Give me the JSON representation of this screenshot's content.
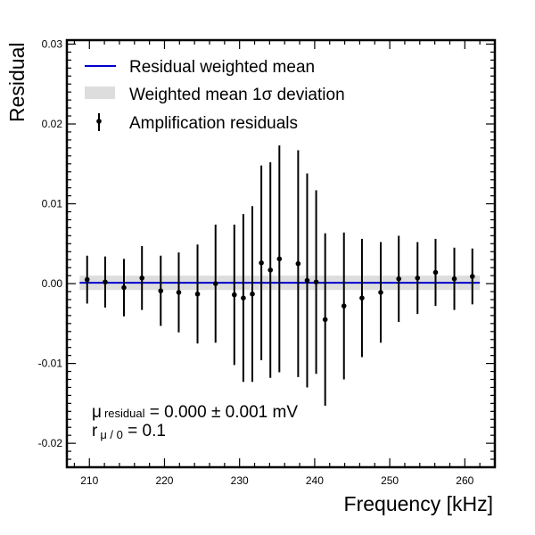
{
  "chart_data": {
    "type": "scatter",
    "xlabel": "Frequency [kHz]",
    "ylabel": "Residual",
    "xlim": [
      207,
      264
    ],
    "ylim": [
      -0.023,
      0.0305
    ],
    "xticks": [
      210,
      220,
      230,
      240,
      250,
      260
    ],
    "yticks": [
      -0.02,
      -0.01,
      0.0,
      0.01,
      0.02,
      0.03
    ],
    "ytick_labels": [
      "-0.02",
      "-0.01",
      "0.00",
      "0.01",
      "0.02",
      "0.03"
    ],
    "grid": false,
    "legend_position": "top-left",
    "legend": [
      {
        "label": "Residual weighted mean",
        "kind": "line",
        "color": "#0000cc"
      },
      {
        "label": "Weighted mean 1σ deviation",
        "kind": "band",
        "color": "#dddddd"
      },
      {
        "label": "Amplification residuals",
        "kind": "errorbar",
        "color": "#000000"
      }
    ],
    "weighted_mean": 0.0001,
    "band": [
      -0.0008,
      0.001
    ],
    "series": [
      {
        "name": "Amplification residuals",
        "x": [
          209.7,
          212.1,
          214.6,
          217.0,
          219.5,
          221.9,
          224.4,
          226.8,
          229.3,
          230.5,
          231.7,
          232.9,
          234.1,
          235.3,
          237.8,
          239.0,
          240.2,
          241.4,
          243.9,
          246.3,
          248.8,
          251.2,
          253.7,
          256.1,
          258.6,
          261.0
        ],
        "y": [
          0.0005,
          0.0002,
          -0.0005,
          0.0007,
          -0.0009,
          -0.0011,
          -0.0013,
          0.0,
          -0.0014,
          -0.0018,
          -0.0013,
          0.0026,
          0.0017,
          0.0031,
          0.0025,
          0.0004,
          0.0002,
          -0.0045,
          -0.0028,
          -0.0018,
          -0.0011,
          0.0006,
          0.0007,
          0.0014,
          0.0006,
          0.0009
        ],
        "yerr": [
          0.003,
          0.0032,
          0.0036,
          0.004,
          0.0044,
          0.005,
          0.0062,
          0.0074,
          0.0088,
          0.0105,
          0.011,
          0.0122,
          0.0135,
          0.0142,
          0.0142,
          0.0134,
          0.0115,
          0.0108,
          0.0092,
          0.0074,
          0.0063,
          0.0054,
          0.0045,
          0.0042,
          0.0039,
          0.0035
        ]
      }
    ],
    "annotations": {
      "line1": {
        "symbol": "μ",
        "subscript": "residual",
        "text": " = 0.000 ± 0.001 mV"
      },
      "line2": {
        "symbol": "r",
        "subscript": "μ / 0",
        "text": " = 0.1"
      }
    }
  }
}
